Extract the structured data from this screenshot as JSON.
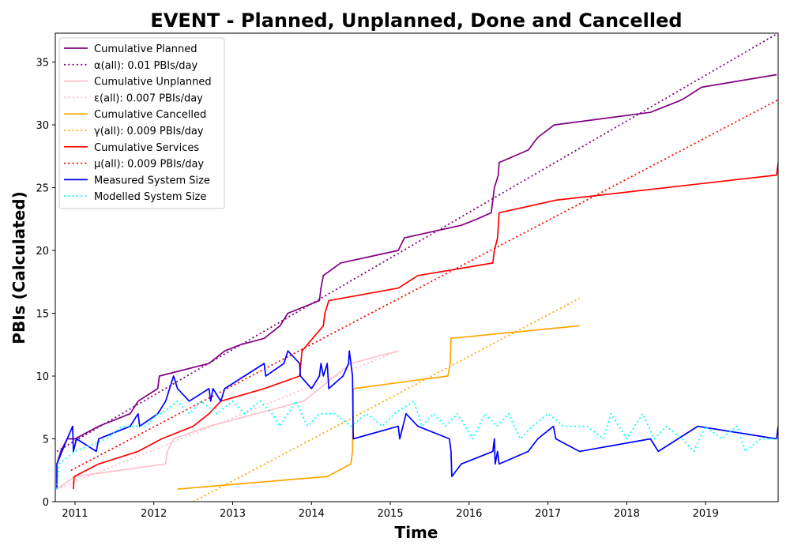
{
  "chart_data": {
    "type": "line",
    "title": "EVENT - Planned, Unplanned, Done  and Cancelled",
    "xlabel": "Time",
    "ylabel": "PBIs (Calculated)",
    "xlim": [
      2010.75,
      2019.92
    ],
    "ylim": [
      0,
      37.3
    ],
    "x_ticks": [
      2011,
      2012,
      2013,
      2014,
      2015,
      2016,
      2017,
      2018,
      2019
    ],
    "y_ticks": [
      0,
      5,
      10,
      15,
      20,
      25,
      30,
      35
    ],
    "grid": false,
    "legend_position": "top-left",
    "series": [
      {
        "name": "Cumulative Planned",
        "color": "#800080",
        "style": "solid",
        "points": [
          [
            2010.77,
            3
          ],
          [
            2010.82,
            4
          ],
          [
            2010.9,
            5
          ],
          [
            2011.0,
            5
          ],
          [
            2011.3,
            6
          ],
          [
            2011.7,
            7
          ],
          [
            2011.8,
            8
          ],
          [
            2012.05,
            9
          ],
          [
            2012.07,
            10
          ],
          [
            2012.7,
            11
          ],
          [
            2012.9,
            12
          ],
          [
            2013.1,
            12.5
          ],
          [
            2013.4,
            13
          ],
          [
            2013.6,
            14
          ],
          [
            2013.7,
            15
          ],
          [
            2014.1,
            16
          ],
          [
            2014.12,
            17
          ],
          [
            2014.15,
            18
          ],
          [
            2014.37,
            19
          ],
          [
            2015.1,
            20
          ],
          [
            2015.18,
            21
          ],
          [
            2015.9,
            22
          ],
          [
            2016.1,
            22.5
          ],
          [
            2016.28,
            23
          ],
          [
            2016.32,
            25
          ],
          [
            2016.37,
            26
          ],
          [
            2016.38,
            27
          ],
          [
            2016.75,
            28
          ],
          [
            2016.87,
            29
          ],
          [
            2017.08,
            30
          ],
          [
            2018.3,
            31
          ],
          [
            2018.7,
            32
          ],
          [
            2018.95,
            33
          ],
          [
            2019.9,
            34
          ]
        ]
      },
      {
        "name": "α(all): 0.01 PBIs/day",
        "color": "#800080",
        "style": "dotted",
        "points": [
          [
            2010.77,
            4
          ],
          [
            2019.92,
            37.3
          ]
        ]
      },
      {
        "name": "Cumulative Unplanned",
        "color": "#ffc0cb",
        "style": "solid",
        "points": [
          [
            2010.77,
            1
          ],
          [
            2011.0,
            2
          ],
          [
            2012.15,
            3
          ],
          [
            2012.17,
            4
          ],
          [
            2012.25,
            5
          ],
          [
            2012.7,
            6
          ],
          [
            2013.3,
            7
          ],
          [
            2013.9,
            8
          ],
          [
            2014.5,
            11
          ],
          [
            2015.1,
            12
          ]
        ]
      },
      {
        "name": "ε(all): 0.007 PBIs/day",
        "color": "#ffc0cb",
        "style": "dotted",
        "points": [
          [
            2010.77,
            1
          ],
          [
            2015.1,
            12
          ]
        ]
      },
      {
        "name": "Cumulative Cancelled",
        "color": "#ffa500",
        "style": "solid",
        "points": [
          [
            2012.3,
            1
          ],
          [
            2014.2,
            2
          ],
          [
            2014.5,
            3
          ],
          [
            2014.52,
            4
          ],
          [
            2014.53,
            9
          ],
          [
            2015.73,
            10
          ],
          [
            2015.76,
            11
          ],
          [
            2015.77,
            13
          ],
          [
            2017.4,
            14
          ]
        ]
      },
      {
        "name": "γ(all): 0.009 PBIs/day",
        "color": "#ffa500",
        "style": "dotted",
        "points": [
          [
            2012.5,
            0
          ],
          [
            2017.4,
            16.2
          ]
        ]
      },
      {
        "name": "Cumulative Services",
        "color": "#ff0000",
        "style": "solid",
        "points": [
          [
            2010.98,
            1
          ],
          [
            2010.99,
            2
          ],
          [
            2011.3,
            3
          ],
          [
            2011.8,
            4
          ],
          [
            2012.1,
            5
          ],
          [
            2012.5,
            6
          ],
          [
            2012.7,
            7
          ],
          [
            2012.85,
            8
          ],
          [
            2013.4,
            9
          ],
          [
            2013.85,
            10
          ],
          [
            2013.88,
            12
          ],
          [
            2014.15,
            14
          ],
          [
            2014.17,
            15
          ],
          [
            2014.22,
            16
          ],
          [
            2015.1,
            17
          ],
          [
            2015.35,
            18
          ],
          [
            2016.3,
            19
          ],
          [
            2016.32,
            20
          ],
          [
            2016.36,
            21
          ],
          [
            2016.38,
            23
          ],
          [
            2017.1,
            24
          ],
          [
            2019.9,
            26
          ],
          [
            2019.92,
            27
          ]
        ]
      },
      {
        "name": "μ(all): 0.009 PBIs/day",
        "color": "#ff0000",
        "style": "dotted",
        "points": [
          [
            2010.95,
            2.5
          ],
          [
            2019.92,
            32
          ]
        ]
      },
      {
        "name": "Measured System Size",
        "color": "#0000ff",
        "style": "solid",
        "points": [
          [
            2010.77,
            1
          ],
          [
            2010.77,
            3
          ],
          [
            2010.9,
            5
          ],
          [
            2010.97,
            6
          ],
          [
            2010.98,
            4
          ],
          [
            2011.02,
            5
          ],
          [
            2011.27,
            4
          ],
          [
            2011.3,
            5
          ],
          [
            2011.7,
            6
          ],
          [
            2011.8,
            7
          ],
          [
            2011.82,
            6
          ],
          [
            2012.05,
            7
          ],
          [
            2012.15,
            8
          ],
          [
            2012.25,
            10
          ],
          [
            2012.3,
            9
          ],
          [
            2012.45,
            8
          ],
          [
            2012.7,
            9
          ],
          [
            2012.72,
            8
          ],
          [
            2012.75,
            9
          ],
          [
            2012.85,
            8
          ],
          [
            2012.9,
            9
          ],
          [
            2013.4,
            11
          ],
          [
            2013.42,
            10
          ],
          [
            2013.65,
            11
          ],
          [
            2013.7,
            12
          ],
          [
            2013.85,
            11
          ],
          [
            2013.86,
            10
          ],
          [
            2014.0,
            9
          ],
          [
            2014.1,
            10
          ],
          [
            2014.12,
            11
          ],
          [
            2014.15,
            10
          ],
          [
            2014.2,
            11
          ],
          [
            2014.22,
            9
          ],
          [
            2014.4,
            10
          ],
          [
            2014.47,
            11
          ],
          [
            2014.48,
            12
          ],
          [
            2014.5,
            11
          ],
          [
            2014.52,
            10
          ],
          [
            2014.53,
            5
          ],
          [
            2015.1,
            6
          ],
          [
            2015.12,
            5
          ],
          [
            2015.2,
            7
          ],
          [
            2015.35,
            6
          ],
          [
            2015.75,
            5
          ],
          [
            2015.77,
            4
          ],
          [
            2015.78,
            2
          ],
          [
            2015.9,
            3
          ],
          [
            2016.1,
            3.5
          ],
          [
            2016.3,
            4
          ],
          [
            2016.32,
            5
          ],
          [
            2016.33,
            3
          ],
          [
            2016.36,
            4
          ],
          [
            2016.38,
            3
          ],
          [
            2016.75,
            4
          ],
          [
            2016.87,
            5
          ],
          [
            2017.07,
            6
          ],
          [
            2017.1,
            5
          ],
          [
            2017.4,
            4
          ],
          [
            2018.3,
            5
          ],
          [
            2018.4,
            4
          ],
          [
            2018.9,
            6
          ],
          [
            2019.9,
            5
          ],
          [
            2019.92,
            6
          ]
        ]
      },
      {
        "name": "Modelled System Size",
        "color": "#00ffff",
        "style": "dotted",
        "points": [
          [
            2010.77,
            1
          ],
          [
            2010.8,
            3
          ],
          [
            2011.0,
            4
          ],
          [
            2011.4,
            5
          ],
          [
            2011.6,
            6
          ],
          [
            2011.9,
            6
          ],
          [
            2012.05,
            7
          ],
          [
            2012.1,
            7
          ],
          [
            2012.3,
            8
          ],
          [
            2012.45,
            7
          ],
          [
            2012.6,
            8
          ],
          [
            2012.8,
            7
          ],
          [
            2013.0,
            8
          ],
          [
            2013.15,
            7
          ],
          [
            2013.35,
            8
          ],
          [
            2013.5,
            7
          ],
          [
            2013.6,
            6
          ],
          [
            2013.8,
            8
          ],
          [
            2013.95,
            6
          ],
          [
            2014.1,
            7
          ],
          [
            2014.3,
            7
          ],
          [
            2014.5,
            6
          ],
          [
            2014.7,
            7
          ],
          [
            2014.9,
            6
          ],
          [
            2015.05,
            7
          ],
          [
            2015.3,
            8
          ],
          [
            2015.4,
            6
          ],
          [
            2015.55,
            7
          ],
          [
            2015.7,
            6
          ],
          [
            2015.85,
            7
          ],
          [
            2016.05,
            5
          ],
          [
            2016.2,
            7
          ],
          [
            2016.35,
            6
          ],
          [
            2016.5,
            7
          ],
          [
            2016.65,
            5
          ],
          [
            2016.8,
            6
          ],
          [
            2017.0,
            7
          ],
          [
            2017.2,
            6
          ],
          [
            2017.5,
            6
          ],
          [
            2017.7,
            5
          ],
          [
            2017.8,
            7
          ],
          [
            2018.0,
            5
          ],
          [
            2018.2,
            7
          ],
          [
            2018.35,
            5
          ],
          [
            2018.5,
            6
          ],
          [
            2018.7,
            5
          ],
          [
            2018.85,
            4
          ],
          [
            2019.0,
            6
          ],
          [
            2019.2,
            5
          ],
          [
            2019.4,
            6
          ],
          [
            2019.5,
            4
          ],
          [
            2019.7,
            5
          ],
          [
            2019.9,
            5
          ]
        ]
      }
    ]
  }
}
